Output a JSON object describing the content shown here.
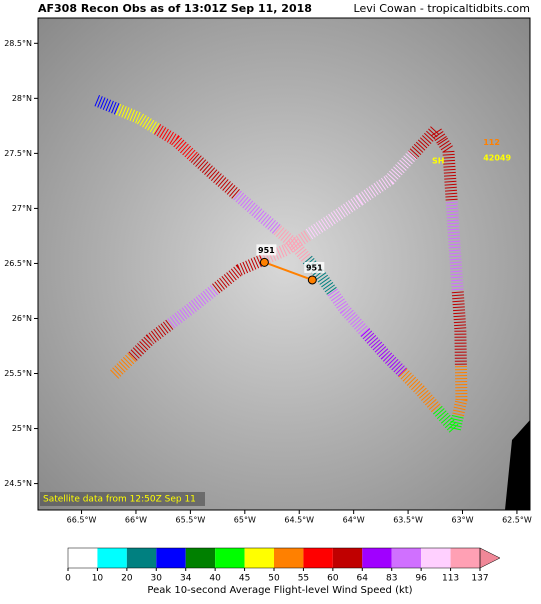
{
  "title": "AF308 Recon Obs as of 13:01Z Sep 11, 2018",
  "credit": "Levi Cowan - tropicaltidbits.com",
  "map": {
    "lonlim": [
      -66.9,
      -62.38
    ],
    "latlim": [
      24.26,
      28.73
    ],
    "lon_ticks": [
      {
        "value": -66.5,
        "label": "66.5°W"
      },
      {
        "value": -66,
        "label": "66°W"
      },
      {
        "value": -65.5,
        "label": "65.5°W"
      },
      {
        "value": -65,
        "label": "65°W"
      },
      {
        "value": -64.5,
        "label": "64.5°W"
      },
      {
        "value": -64,
        "label": "64°W"
      },
      {
        "value": -63.5,
        "label": "63.5°W"
      },
      {
        "value": -63,
        "label": "63°W"
      },
      {
        "value": -62.5,
        "label": "62.5°W"
      }
    ],
    "lat_ticks": [
      {
        "value": 24.5,
        "label": "24.5°N"
      },
      {
        "value": 25,
        "label": "25°N"
      },
      {
        "value": 25.5,
        "label": "25.5°N"
      },
      {
        "value": 26,
        "label": "26°N"
      },
      {
        "value": 26.5,
        "label": "26.5°N"
      },
      {
        "value": 27,
        "label": "27°N"
      },
      {
        "value": 27.5,
        "label": "27.5°N"
      },
      {
        "value": 28,
        "label": "28°N"
      },
      {
        "value": 28.5,
        "label": "28.5°N"
      }
    ],
    "caption": "Satellite data from 12:50Z Sep 11"
  },
  "track": [
    {
      "lon": -66.36,
      "lat": 27.98,
      "wind": 30
    },
    {
      "lon": -65.97,
      "lat": 27.82,
      "wind": 45
    },
    {
      "lon": -65.64,
      "lat": 27.62,
      "wind": 55
    },
    {
      "lon": -65.28,
      "lat": 27.3,
      "wind": 60
    },
    {
      "lon": -64.86,
      "lat": 26.94,
      "wind": 83
    },
    {
      "lon": -64.54,
      "lat": 26.67,
      "wind": 113
    },
    {
      "lon": -64.31,
      "lat": 26.4,
      "wind": 20
    },
    {
      "lon": -64.08,
      "lat": 26.08,
      "wind": 83
    },
    {
      "lon": -63.71,
      "lat": 25.67,
      "wind": 64
    },
    {
      "lon": -63.39,
      "lat": 25.35,
      "wind": 50
    },
    {
      "lon": -63.07,
      "lat": 24.99,
      "wind": 40
    },
    {
      "lon": -63.01,
      "lat": 25.26,
      "wind": 50
    },
    {
      "lon": -63.02,
      "lat": 25.9,
      "wind": 60
    },
    {
      "lon": -63.07,
      "lat": 26.62,
      "wind": 83
    },
    {
      "lon": -63.13,
      "lat": 27.53,
      "wind": 60
    },
    {
      "lon": -63.25,
      "lat": 27.71,
      "wind": 60
    },
    {
      "lon": -63.67,
      "lat": 27.26,
      "wind": 96
    },
    {
      "lon": -64.22,
      "lat": 26.89,
      "wind": 96
    },
    {
      "lon": -64.63,
      "lat": 26.62,
      "wind": 113
    },
    {
      "lon": -65.05,
      "lat": 26.44,
      "wind": 60
    },
    {
      "lon": -65.51,
      "lat": 26.08,
      "wind": 83
    },
    {
      "lon": -65.87,
      "lat": 25.81,
      "wind": 60
    },
    {
      "lon": -66.2,
      "lat": 25.49,
      "wind": 50
    }
  ],
  "centers": [
    {
      "lon": -64.82,
      "lat": 26.51,
      "pressure": 951
    },
    {
      "lon": -64.38,
      "lat": 26.35,
      "pressure": 951
    }
  ],
  "annotations": [
    {
      "text": "112",
      "lon": -62.81,
      "lat": 27.6,
      "color": "#ff8000"
    },
    {
      "text": "SH",
      "lon": -63.28,
      "lat": 27.43,
      "color": "#ffff00"
    },
    {
      "text": "42049",
      "lon": -62.81,
      "lat": 27.46,
      "color": "#ffff00"
    }
  ],
  "colorbar": {
    "label": "Peak 10-second Average Flight-level Wind Speed (kt)",
    "bounds": [
      0,
      10,
      20,
      30,
      34,
      40,
      45,
      50,
      55,
      60,
      64,
      83,
      96,
      113,
      137
    ],
    "colors": [
      "#ffffff",
      "#00ffff",
      "#008080",
      "#0000ff",
      "#008000",
      "#00ff00",
      "#ffff00",
      "#ff8000",
      "#ff0000",
      "#c00000",
      "#a000ff",
      "#d070ff",
      "#ffd0ff",
      "#ffa0b4"
    ],
    "extend_color": "#f08898"
  }
}
